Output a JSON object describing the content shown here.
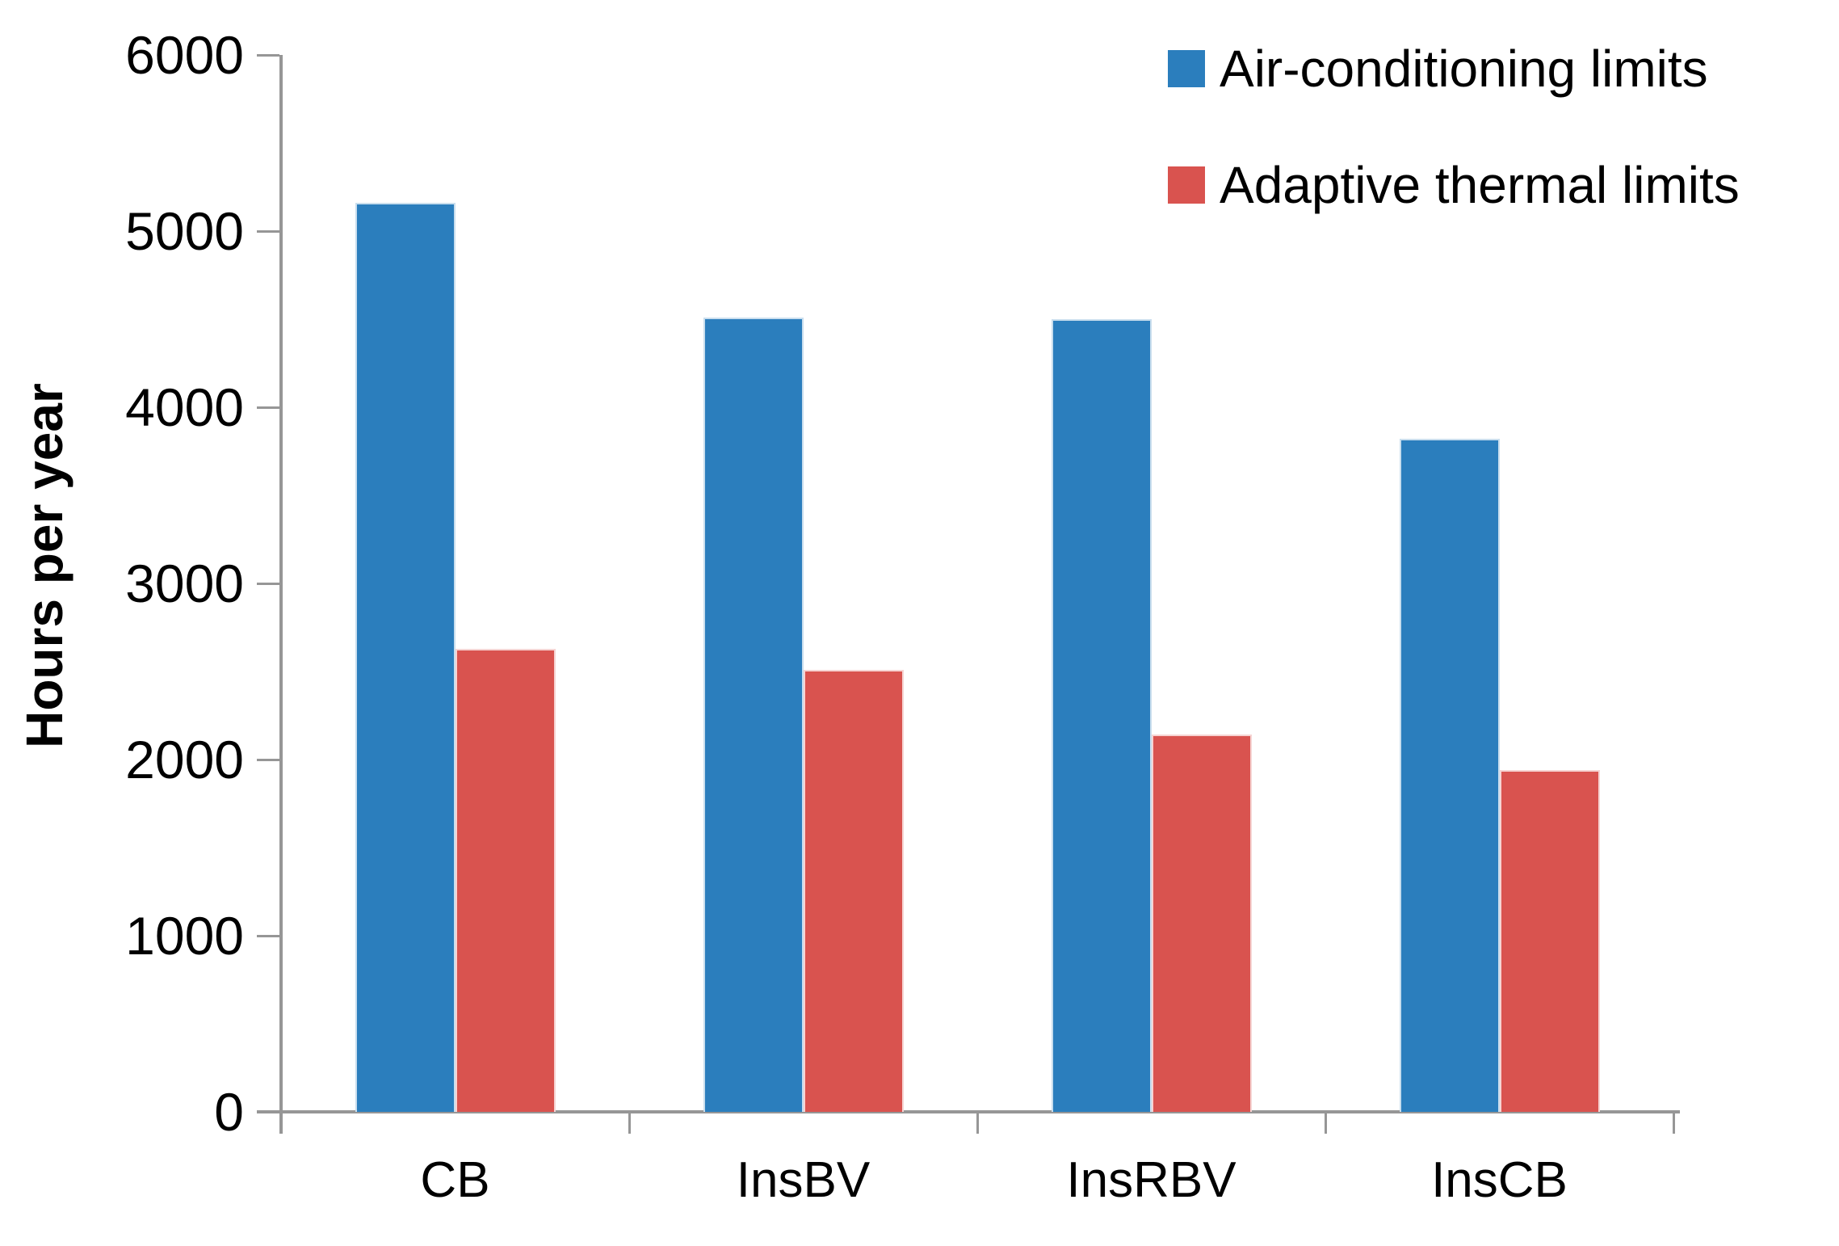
{
  "chart_data": {
    "type": "bar",
    "title": "",
    "xlabel": "",
    "ylabel": "Hours per year",
    "categories": [
      "CB",
      "InsBV",
      "InsRBV",
      "InsCB"
    ],
    "series": [
      {
        "name": "Air-conditioning limits",
        "color": "#2B7EBD",
        "values": [
          5160,
          4510,
          4500,
          3820
        ]
      },
      {
        "name": "Adaptive thermal limits",
        "color": "#D9534F",
        "values": [
          2630,
          2510,
          2140,
          1940
        ]
      }
    ],
    "ylim": [
      0,
      6000
    ],
    "yticks": [
      0,
      1000,
      2000,
      3000,
      4000,
      5000,
      6000
    ],
    "grid": "off",
    "legend_position": "top-right",
    "axis_color": "#969696"
  }
}
